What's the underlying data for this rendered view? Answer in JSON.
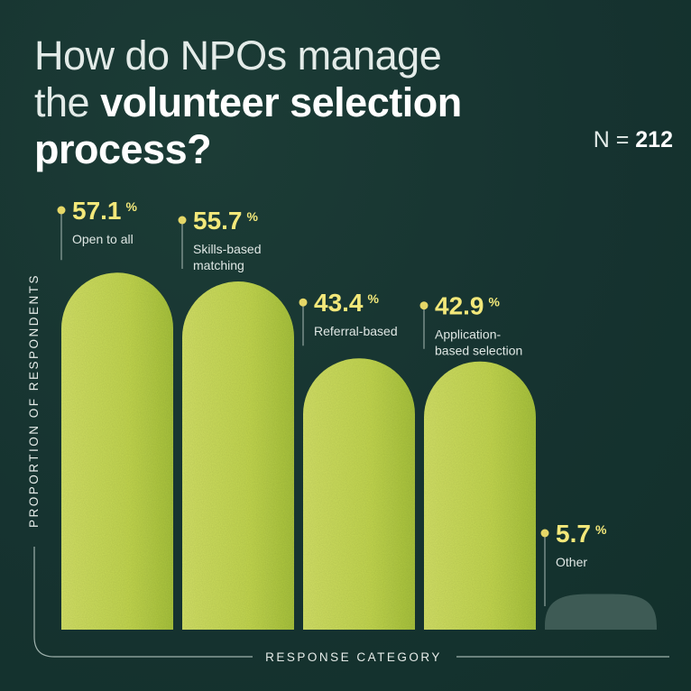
{
  "title": {
    "line1": "How do NPOs manage",
    "line2_prefix": "the ",
    "line2_bold": "volunteer selection",
    "line3_bold": "process?"
  },
  "sample": {
    "label": "N = ",
    "value": "212"
  },
  "colors": {
    "background": "#173530",
    "bar": "#c4d852",
    "bar_other": "#3e5b55",
    "value_text": "#f3e87a",
    "marker": "#e5d767"
  },
  "chart_data": {
    "type": "bar",
    "xlabel": "RESPONSE CATEGORY",
    "ylabel": "PROPORTION OF RESPONDENTS",
    "unit": "%",
    "categories": [
      [
        "Open to all"
      ],
      [
        "Skills-based",
        "matching"
      ],
      [
        "Referral-based"
      ],
      [
        "Application-",
        "based selection"
      ],
      [
        "Other"
      ]
    ],
    "values": [
      57.1,
      55.7,
      43.4,
      42.9,
      5.7
    ],
    "value_labels": [
      "57.1",
      "55.7",
      "43.4",
      "42.9",
      "5.7"
    ]
  }
}
